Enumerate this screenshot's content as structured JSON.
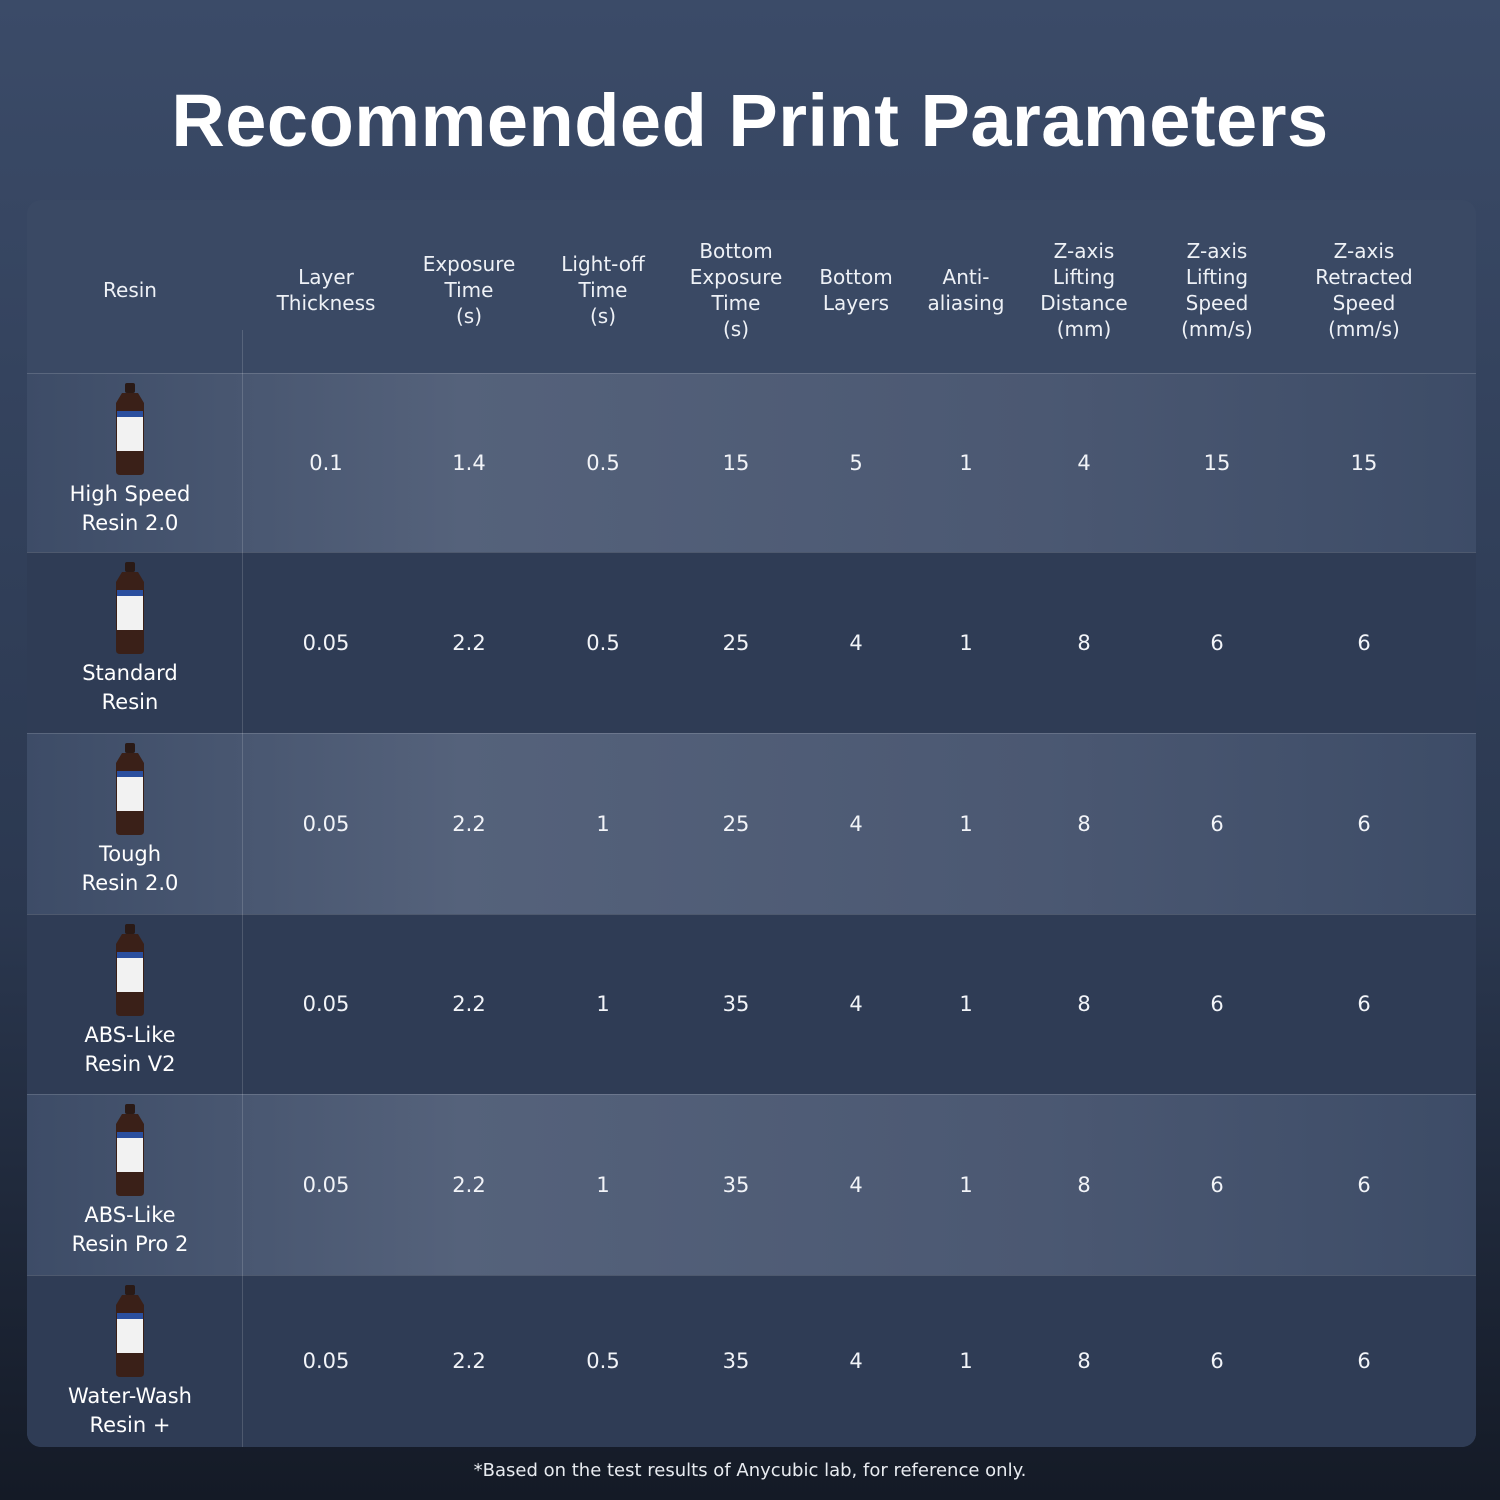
{
  "title": "Recommended Print Parameters",
  "table": {
    "headers": [
      [
        "Resin"
      ],
      [
        "Layer",
        "Thickness"
      ],
      [
        "Exposure",
        "Time",
        "(s)"
      ],
      [
        "Light-off",
        "Time",
        "(s)"
      ],
      [
        "Bottom",
        "Exposure",
        "Time",
        "(s)"
      ],
      [
        "Bottom",
        "Layers"
      ],
      [
        "Anti-",
        "aliasing"
      ],
      [
        "Z-axis",
        "Lifting",
        "Distance",
        "(mm)"
      ],
      [
        "Z-axis",
        "Lifting",
        "Speed",
        "(mm/s)"
      ],
      [
        "Z-axis",
        "Retracted",
        "Speed",
        "(mm/s)"
      ]
    ],
    "rows": [
      {
        "name": [
          "High Speed",
          "Resin 2.0"
        ],
        "values": [
          "0.1",
          "1.4",
          "0.5",
          "15",
          "5",
          "1",
          "4",
          "15",
          "15"
        ]
      },
      {
        "name": [
          "Standard",
          "Resin"
        ],
        "values": [
          "0.05",
          "2.2",
          "0.5",
          "25",
          "4",
          "1",
          "8",
          "6",
          "6"
        ]
      },
      {
        "name": [
          "Tough",
          "Resin 2.0"
        ],
        "values": [
          "0.05",
          "2.2",
          "1",
          "25",
          "4",
          "1",
          "8",
          "6",
          "6"
        ]
      },
      {
        "name": [
          "ABS-Like",
          "Resin V2"
        ],
        "values": [
          "0.05",
          "2.2",
          "1",
          "35",
          "4",
          "1",
          "8",
          "6",
          "6"
        ]
      },
      {
        "name": [
          "ABS-Like",
          "Resin Pro 2"
        ],
        "values": [
          "0.05",
          "2.2",
          "1",
          "35",
          "4",
          "1",
          "8",
          "6",
          "6"
        ]
      },
      {
        "name": [
          "Water-Wash",
          "Resin +"
        ],
        "values": [
          "0.05",
          "2.2",
          "0.5",
          "35",
          "4",
          "1",
          "8",
          "6",
          "6"
        ]
      }
    ]
  },
  "footnote": "*Based on the test results of Anycubic lab, for reference only."
}
